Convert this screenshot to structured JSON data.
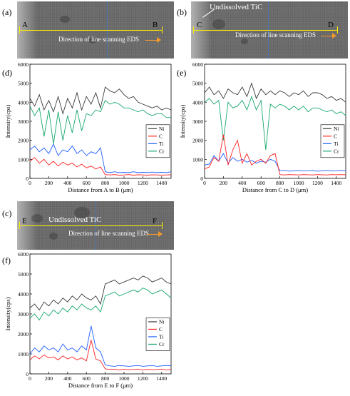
{
  "panels": {
    "a": {
      "label": "(a)",
      "start": "A",
      "end": "B",
      "direction": "Direction of line scanning EDS"
    },
    "b": {
      "label": "(b)",
      "start": "C",
      "end": "D",
      "direction": "Direction of line scanning EDS",
      "annotation": "Undissolved TiC"
    },
    "c": {
      "label": "(c)",
      "start": "E",
      "end": "F",
      "direction": "Direction of line scanning EDS",
      "annotation": "Undissolved TiC"
    }
  },
  "colors": {
    "Ni": "#3a3a3a",
    "C": "#ff2020",
    "Ti": "#1f5fff",
    "Cr": "#15a86b"
  },
  "chart_data": [
    {
      "id": "d",
      "label": "(d)",
      "type": "line",
      "xlabel": "Distance from A to B (μm)",
      "ylabel": "Intensity(cps)",
      "xlim": [
        0,
        1500
      ],
      "ylim": [
        0,
        6000
      ],
      "xticks": [
        0,
        200,
        400,
        600,
        800,
        1000,
        1200,
        1400
      ],
      "yticks": [
        0,
        1000,
        2000,
        3000,
        4000,
        5000,
        6000
      ],
      "legend": "right-center",
      "series": [
        {
          "name": "Ni",
          "x": [
            0,
            50,
            100,
            150,
            200,
            250,
            300,
            350,
            400,
            450,
            500,
            550,
            600,
            650,
            700,
            750,
            800,
            850,
            900,
            950,
            1000,
            1050,
            1100,
            1150,
            1200,
            1250,
            1300,
            1350,
            1400,
            1450,
            1500
          ],
          "values": [
            4200,
            3800,
            4400,
            3600,
            4100,
            3500,
            4300,
            3400,
            4200,
            3700,
            4500,
            3600,
            4300,
            3900,
            4500,
            3700,
            4800,
            4600,
            4500,
            4700,
            4400,
            4200,
            4300,
            4000,
            3900,
            3800,
            3700,
            3800,
            3600,
            3700,
            3600
          ]
        },
        {
          "name": "Cr",
          "x": [
            0,
            50,
            100,
            150,
            200,
            250,
            300,
            350,
            400,
            450,
            500,
            550,
            600,
            650,
            700,
            750,
            800,
            850,
            900,
            950,
            1000,
            1050,
            1100,
            1150,
            1200,
            1250,
            1300,
            1350,
            1400,
            1450,
            1500
          ],
          "values": [
            3800,
            3300,
            3700,
            2200,
            3600,
            1800,
            3500,
            2000,
            3300,
            2400,
            3600,
            2500,
            3400,
            3300,
            3600,
            3500,
            4100,
            3900,
            4000,
            3900,
            3700,
            3700,
            3600,
            3500,
            3600,
            3400,
            3300,
            3400,
            3400,
            3200,
            3200
          ]
        },
        {
          "name": "Ti",
          "x": [
            0,
            50,
            100,
            150,
            200,
            250,
            300,
            350,
            400,
            450,
            500,
            550,
            600,
            650,
            700,
            750,
            800,
            850,
            900,
            950,
            1000,
            1050,
            1100,
            1150,
            1200,
            1250,
            1300,
            1350,
            1400,
            1450,
            1500
          ],
          "values": [
            1500,
            1700,
            1400,
            1600,
            1300,
            1800,
            1200,
            1500,
            1400,
            1700,
            1300,
            1500,
            1200,
            1400,
            1300,
            1600,
            350,
            300,
            350,
            300,
            320,
            300,
            350,
            300,
            320,
            300,
            330,
            300,
            320,
            300,
            350
          ]
        },
        {
          "name": "C",
          "x": [
            0,
            50,
            100,
            150,
            200,
            250,
            300,
            350,
            400,
            450,
            500,
            550,
            600,
            650,
            700,
            750,
            800,
            850,
            900,
            950,
            1000,
            1050,
            1100,
            1150,
            1200,
            1250,
            1300,
            1350,
            1400,
            1450,
            1500
          ],
          "values": [
            900,
            1100,
            800,
            1000,
            700,
            900,
            650,
            850,
            700,
            800,
            600,
            750,
            550,
            650,
            500,
            600,
            200,
            180,
            200,
            170,
            180,
            200,
            170,
            190,
            180,
            170,
            190,
            180,
            170,
            180,
            190
          ]
        }
      ]
    },
    {
      "id": "e",
      "label": "(e)",
      "type": "line",
      "xlabel": "Distance from C to D (μm)",
      "ylabel": "Intensity(cps)",
      "xlim": [
        0,
        1500
      ],
      "ylim": [
        0,
        6000
      ],
      "xticks": [
        0,
        200,
        400,
        600,
        800,
        1000,
        1200,
        1400
      ],
      "yticks": [
        0,
        1000,
        2000,
        3000,
        4000,
        5000,
        6000
      ],
      "legend": "right-center",
      "series": [
        {
          "name": "Ni",
          "x": [
            0,
            50,
            100,
            150,
            200,
            250,
            300,
            350,
            400,
            450,
            500,
            550,
            600,
            650,
            700,
            750,
            800,
            850,
            900,
            950,
            1000,
            1050,
            1100,
            1150,
            1200,
            1250,
            1300,
            1350,
            1400,
            1450,
            1500
          ],
          "values": [
            4500,
            4800,
            4400,
            4600,
            4200,
            4700,
            4500,
            4400,
            4800,
            4300,
            5000,
            4200,
            4700,
            4400,
            4600,
            4400,
            4600,
            4500,
            4300,
            4500,
            4400,
            4600,
            4300,
            4500,
            4500,
            4400,
            4200,
            4300,
            4100,
            4200,
            4000
          ]
        },
        {
          "name": "Cr",
          "x": [
            0,
            50,
            100,
            150,
            200,
            250,
            300,
            350,
            400,
            450,
            500,
            550,
            600,
            650,
            700,
            750,
            800,
            850,
            900,
            950,
            1000,
            1050,
            1100,
            1150,
            1200,
            1250,
            1300,
            1350,
            1400,
            1450,
            1500
          ],
          "values": [
            4000,
            4200,
            3900,
            4100,
            2000,
            4000,
            3700,
            3800,
            4100,
            3600,
            4300,
            3600,
            4100,
            1500,
            3900,
            3700,
            3900,
            3800,
            3600,
            3800,
            3600,
            3800,
            3500,
            3700,
            3700,
            3600,
            3500,
            3600,
            3400,
            3500,
            3300
          ]
        },
        {
          "name": "Ti",
          "x": [
            0,
            50,
            100,
            150,
            200,
            250,
            300,
            350,
            400,
            450,
            500,
            550,
            600,
            650,
            700,
            750,
            800,
            850,
            900,
            950,
            1000,
            1050,
            1100,
            1150,
            1200,
            1250,
            1300,
            1350,
            1400,
            1450,
            1500
          ],
          "values": [
            700,
            750,
            1200,
            900,
            1300,
            800,
            1100,
            900,
            1000,
            850,
            950,
            800,
            900,
            850,
            1000,
            900,
            400,
            420,
            380,
            400,
            410,
            390,
            400,
            420,
            380,
            400,
            410,
            390,
            400,
            420,
            400
          ]
        },
        {
          "name": "C",
          "x": [
            0,
            50,
            100,
            150,
            200,
            250,
            300,
            350,
            400,
            450,
            500,
            550,
            600,
            650,
            700,
            750,
            800,
            850,
            900,
            950,
            1000,
            1050,
            1100,
            1150,
            1200,
            1250,
            1300,
            1350,
            1400,
            1450,
            1500
          ],
          "values": [
            500,
            600,
            1100,
            900,
            2300,
            700,
            1500,
            2000,
            800,
            1300,
            700,
            900,
            1000,
            800,
            1200,
            1300,
            200,
            180,
            200,
            190,
            180,
            200,
            190,
            180,
            200,
            190,
            180,
            200,
            190,
            200,
            190
          ]
        }
      ]
    },
    {
      "id": "f",
      "label": "(f)",
      "type": "line",
      "xlabel": "Distance from E to F (μm)",
      "ylabel": "Intensity(cps)",
      "xlim": [
        0,
        1500
      ],
      "ylim": [
        0,
        6000
      ],
      "xticks": [
        0,
        200,
        400,
        600,
        800,
        1000,
        1200,
        1400
      ],
      "yticks": [
        0,
        1000,
        2000,
        3000,
        4000,
        5000,
        6000
      ],
      "legend": "right-center",
      "series": [
        {
          "name": "Ni",
          "x": [
            0,
            50,
            100,
            150,
            200,
            250,
            300,
            350,
            400,
            450,
            500,
            550,
            600,
            650,
            700,
            750,
            800,
            850,
            900,
            950,
            1000,
            1050,
            1100,
            1150,
            1200,
            1250,
            1300,
            1350,
            1400,
            1450,
            1500
          ],
          "values": [
            3300,
            3500,
            3200,
            3600,
            3400,
            3700,
            3500,
            3800,
            3600,
            3900,
            3700,
            4000,
            3800,
            3700,
            3900,
            3500,
            4500,
            4600,
            4700,
            4500,
            4600,
            4700,
            4800,
            4700,
            4900,
            4800,
            4600,
            4700,
            4800,
            4600,
            4500
          ]
        },
        {
          "name": "Cr",
          "x": [
            0,
            50,
            100,
            150,
            200,
            250,
            300,
            350,
            400,
            450,
            500,
            550,
            600,
            650,
            700,
            750,
            800,
            850,
            900,
            950,
            1000,
            1050,
            1100,
            1150,
            1200,
            1250,
            1300,
            1350,
            1400,
            1450,
            1500
          ],
          "values": [
            2800,
            3000,
            2700,
            3100,
            2900,
            3200,
            3000,
            3300,
            3100,
            3400,
            3200,
            3500,
            3300,
            3200,
            3400,
            3100,
            3900,
            4000,
            4100,
            3900,
            4000,
            4100,
            4200,
            4100,
            4300,
            4200,
            4000,
            4100,
            4200,
            4000,
            3800
          ]
        },
        {
          "name": "Ti",
          "x": [
            0,
            50,
            100,
            150,
            200,
            250,
            300,
            350,
            400,
            450,
            500,
            550,
            600,
            650,
            700,
            750,
            800,
            850,
            900,
            950,
            1000,
            1050,
            1100,
            1150,
            1200,
            1250,
            1300,
            1350,
            1400,
            1450,
            1500
          ],
          "values": [
            1000,
            1300,
            1100,
            1400,
            1200,
            1300,
            1100,
            1500,
            1200,
            1300,
            1100,
            1400,
            1200,
            2400,
            1300,
            1100,
            450,
            400,
            380,
            420,
            400,
            380,
            400,
            420,
            380,
            400,
            420,
            380,
            400,
            420,
            400
          ]
        },
        {
          "name": "C",
          "x": [
            0,
            50,
            100,
            150,
            200,
            250,
            300,
            350,
            400,
            450,
            500,
            550,
            600,
            650,
            700,
            750,
            800,
            850,
            900,
            950,
            1000,
            1050,
            1100,
            1150,
            1200,
            1250,
            1300,
            1350,
            1400,
            1450,
            1500
          ],
          "values": [
            700,
            900,
            750,
            950,
            800,
            850,
            700,
            900,
            750,
            850,
            700,
            800,
            650,
            1700,
            750,
            650,
            250,
            220,
            240,
            200,
            230,
            210,
            220,
            240,
            200,
            230,
            210,
            220,
            240,
            200,
            230
          ]
        }
      ]
    }
  ]
}
